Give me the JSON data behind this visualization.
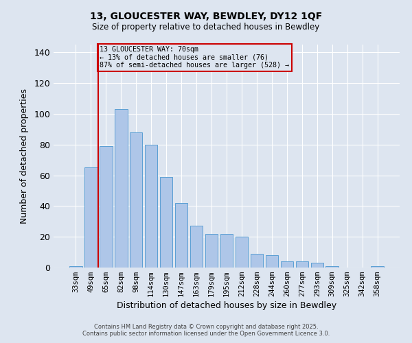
{
  "title_line1": "13, GLOUCESTER WAY, BEWDLEY, DY12 1QF",
  "title_line2": "Size of property relative to detached houses in Bewdley",
  "xlabel": "Distribution of detached houses by size in Bewdley",
  "ylabel": "Number of detached properties",
  "categories": [
    "33sqm",
    "49sqm",
    "65sqm",
    "82sqm",
    "98sqm",
    "114sqm",
    "130sqm",
    "147sqm",
    "163sqm",
    "179sqm",
    "195sqm",
    "212sqm",
    "228sqm",
    "244sqm",
    "260sqm",
    "277sqm",
    "293sqm",
    "309sqm",
    "325sqm",
    "342sqm",
    "358sqm"
  ],
  "values": [
    1,
    65,
    79,
    103,
    88,
    80,
    59,
    42,
    27,
    22,
    22,
    20,
    9,
    8,
    4,
    4,
    3,
    1,
    0,
    0,
    1
  ],
  "bar_color": "#aec6e8",
  "bar_edge_color": "#5a9fd4",
  "background_color": "#dde5f0",
  "grid_color": "#ffffff",
  "red_line_index": 2,
  "red_line_color": "#cc0000",
  "annotation_text": "13 GLOUCESTER WAY: 70sqm\n← 13% of detached houses are smaller (76)\n87% of semi-detached houses are larger (528) →",
  "annotation_box_edge": "#cc0000",
  "ylim": [
    0,
    145
  ],
  "yticks": [
    0,
    20,
    40,
    60,
    80,
    100,
    120,
    140
  ],
  "footer_line1": "Contains HM Land Registry data © Crown copyright and database right 2025.",
  "footer_line2": "Contains public sector information licensed under the Open Government Licence 3.0."
}
